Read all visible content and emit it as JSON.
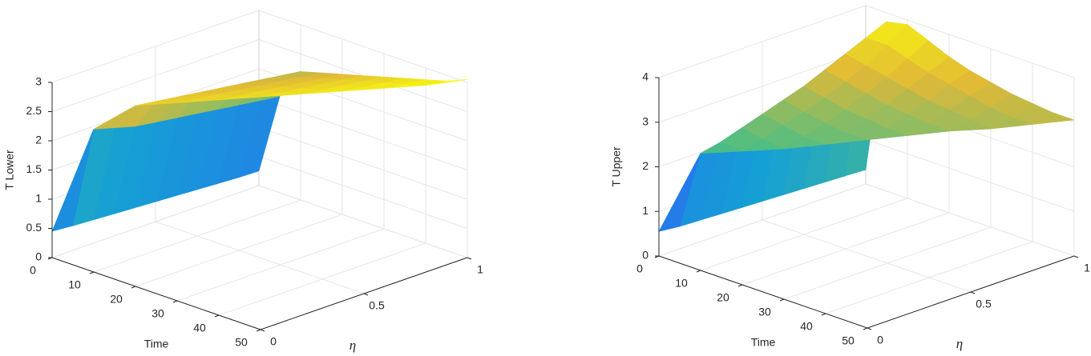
{
  "chart_data": [
    {
      "type": "surface",
      "colormap": "parula",
      "grid": true,
      "xlabel": "Time",
      "ylabel": "η",
      "zlabel": "T Lower",
      "x": [
        0,
        5,
        10,
        15,
        20,
        25,
        30,
        35,
        40,
        45,
        50
      ],
      "y": [
        0,
        0.1,
        0.2,
        0.3,
        0.4,
        0.5,
        0.6,
        0.7,
        0.8,
        0.9,
        1
      ],
      "z": [
        [
          0.45,
          0.42,
          0.4,
          0.38,
          0.36,
          0.34,
          0.32,
          0.3,
          0.28,
          0.26,
          0.25
        ],
        [
          null,
          2.2,
          2.1,
          2.0,
          1.95,
          1.9,
          1.85,
          1.8,
          1.75,
          1.7,
          1.65
        ],
        [
          null,
          null,
          2.6,
          2.55,
          2.5,
          2.45,
          2.4,
          2.35,
          2.3,
          2.25,
          2.2
        ],
        [
          null,
          null,
          null,
          2.65,
          2.6,
          2.55,
          2.5,
          2.45,
          2.4,
          2.35,
          2.3
        ],
        [
          null,
          null,
          null,
          null,
          2.7,
          2.65,
          2.6,
          2.55,
          2.5,
          2.45,
          2.4
        ],
        [
          null,
          null,
          null,
          null,
          null,
          2.75,
          2.7,
          2.65,
          2.6,
          2.55,
          2.5
        ],
        [
          null,
          null,
          null,
          null,
          null,
          null,
          2.8,
          2.75,
          2.7,
          2.65,
          2.6
        ],
        [
          null,
          null,
          null,
          null,
          null,
          null,
          null,
          2.85,
          2.8,
          2.75,
          2.7
        ],
        [
          null,
          null,
          null,
          null,
          null,
          null,
          null,
          null,
          2.9,
          2.85,
          2.8
        ],
        [
          null,
          null,
          null,
          null,
          null,
          null,
          null,
          null,
          null,
          2.95,
          2.9
        ],
        [
          null,
          null,
          null,
          null,
          null,
          null,
          null,
          null,
          null,
          null,
          3.05
        ]
      ],
      "xlim": [
        0,
        50
      ],
      "ylim": [
        0,
        1
      ],
      "zlim": [
        0,
        3
      ],
      "xticks": [
        0,
        10,
        20,
        30,
        40,
        50
      ],
      "yticks": [
        0,
        0.5,
        1
      ],
      "zticks": [
        0,
        0.5,
        1,
        1.5,
        2,
        2.5,
        3
      ]
    },
    {
      "type": "surface",
      "colormap": "parula",
      "grid": true,
      "xlabel": "Time",
      "ylabel": "η",
      "zlabel": "T Upper",
      "x": [
        0,
        5,
        10,
        15,
        20,
        25,
        30,
        35,
        40,
        45,
        50
      ],
      "y": [
        0,
        0.1,
        0.2,
        0.3,
        0.4,
        0.5,
        0.6,
        0.7,
        0.8,
        0.9,
        1
      ],
      "z": [
        [
          0.55,
          0.5,
          0.48,
          0.46,
          0.44,
          0.42,
          0.4,
          0.38,
          0.36,
          0.34,
          0.32
        ],
        [
          null,
          2.3,
          2.4,
          2.55,
          2.7,
          2.85,
          3.0,
          3.2,
          3.4,
          3.6,
          3.8
        ],
        [
          null,
          null,
          2.35,
          2.45,
          2.6,
          2.75,
          2.9,
          3.1,
          3.3,
          3.6,
          3.9
        ],
        [
          null,
          null,
          null,
          2.4,
          2.5,
          2.65,
          2.8,
          3.0,
          3.2,
          3.45,
          3.7
        ],
        [
          null,
          null,
          null,
          null,
          2.5,
          2.6,
          2.75,
          2.9,
          3.1,
          3.3,
          3.5
        ],
        [
          null,
          null,
          null,
          null,
          null,
          2.6,
          2.7,
          2.85,
          3.0,
          3.2,
          3.35
        ],
        [
          null,
          null,
          null,
          null,
          null,
          null,
          2.7,
          2.8,
          2.95,
          3.1,
          3.25
        ],
        [
          null,
          null,
          null,
          null,
          null,
          null,
          null,
          2.8,
          2.9,
          3.0,
          3.15
        ],
        [
          null,
          null,
          null,
          null,
          null,
          null,
          null,
          null,
          2.85,
          2.95,
          3.1
        ],
        [
          null,
          null,
          null,
          null,
          null,
          null,
          null,
          null,
          null,
          2.95,
          3.05
        ],
        [
          null,
          null,
          null,
          null,
          null,
          null,
          null,
          null,
          null,
          null,
          3.05
        ]
      ],
      "xlim": [
        0,
        50
      ],
      "ylim": [
        0,
        1
      ],
      "zlim": [
        0,
        4
      ],
      "xticks": [
        0,
        10,
        20,
        30,
        40,
        50
      ],
      "yticks": [
        0,
        0.5,
        1
      ],
      "zticks": [
        0,
        1,
        2,
        3,
        4
      ]
    }
  ]
}
